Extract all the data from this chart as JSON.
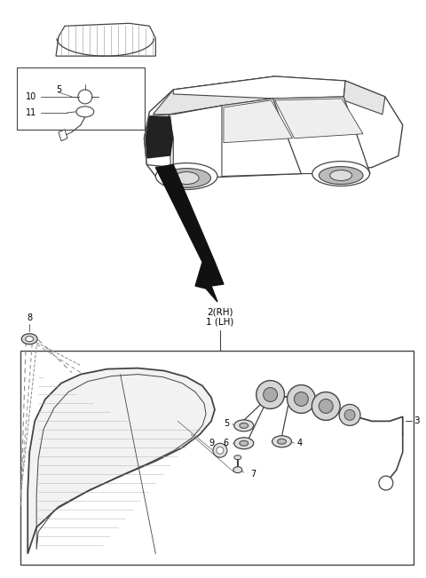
{
  "bg_color": "#ffffff",
  "fig_width": 4.8,
  "fig_height": 6.51,
  "line_color": "#444444",
  "gray_light": "#cccccc",
  "gray_mid": "#999999",
  "gray_dark": "#555555",
  "black": "#111111"
}
